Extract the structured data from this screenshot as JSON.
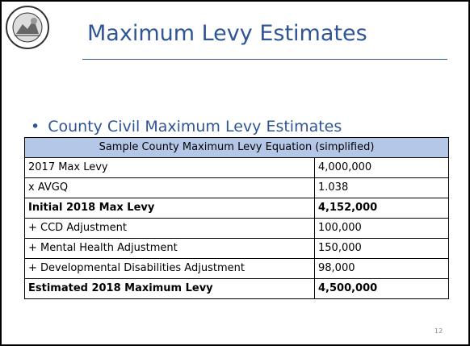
{
  "header": {
    "title": "Maximum Levy Estimates"
  },
  "bullet": "County Civil Maximum Levy Estimates",
  "table": {
    "caption": "Sample County Maximum Levy Equation (simplified)",
    "rows": [
      {
        "cells": [
          "2017 Max Levy",
          "4,000,000"
        ],
        "bold": false
      },
      {
        "cells": [
          "x AVGQ",
          "1.038"
        ],
        "bold": false
      },
      {
        "cells": [
          "Initial 2018 Max Levy",
          "4,152,000"
        ],
        "bold": true
      },
      {
        "cells": [
          "+ CCD Adjustment",
          "100,000"
        ],
        "bold": false
      },
      {
        "cells": [
          "+ Mental Health Adjustment",
          "150,000"
        ],
        "bold": false
      },
      {
        "cells": [
          "+ Developmental Disabilities Adjustment",
          "98,000"
        ],
        "bold": false
      },
      {
        "cells": [
          "Estimated 2018 Maximum Levy",
          "4,500,000"
        ],
        "bold": true
      }
    ]
  },
  "page_number": "12"
}
